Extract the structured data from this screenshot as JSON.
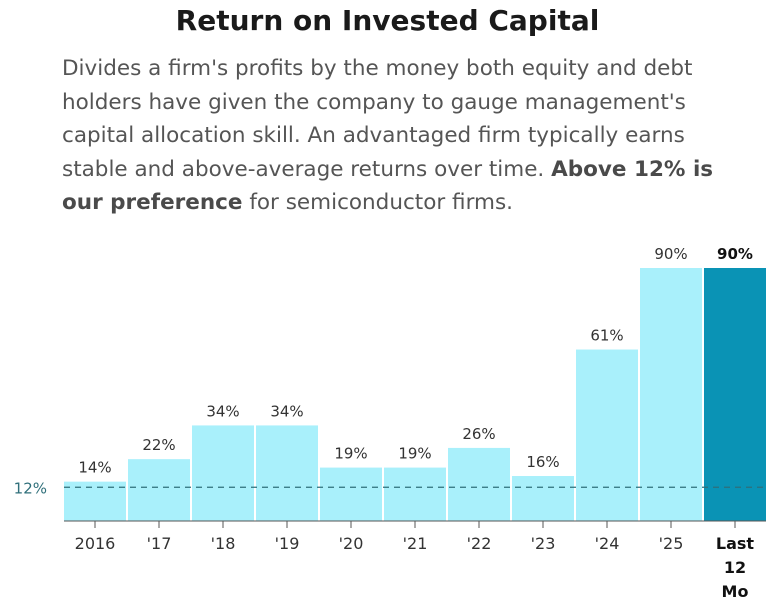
{
  "header": {
    "title": "Return on Invested Capital",
    "desc_intro": "Divides a firm's profits by the money both equity and debt holders have given the company to gauge management's capital allocation skill. An advantaged firm typically earns stable and above-average returns over time. ",
    "desc_bold": "Above 12% is our preference",
    "desc_outro": " for semiconductor firms."
  },
  "chart_data": {
    "type": "bar",
    "categories": [
      "2016",
      "'17",
      "'18",
      "'19",
      "'20",
      "'21",
      "'22",
      "'23",
      "'24",
      "'25",
      "Last 12 Mo"
    ],
    "values": [
      14,
      22,
      34,
      34,
      19,
      19,
      26,
      16,
      61,
      90,
      90
    ],
    "value_labels": [
      "14%",
      "22%",
      "34%",
      "34%",
      "19%",
      "19%",
      "26%",
      "16%",
      "61%",
      "90%",
      "90%"
    ],
    "highlight_index": 10,
    "ylim": [
      0,
      90
    ],
    "reference_line": {
      "value": 12,
      "label": "12%"
    },
    "colors": {
      "bar": "#a9f0fb",
      "highlight": "#0a93b5",
      "text": "#333333",
      "axis": "#555555",
      "ref": "#2f6f7a"
    },
    "grid": false
  }
}
